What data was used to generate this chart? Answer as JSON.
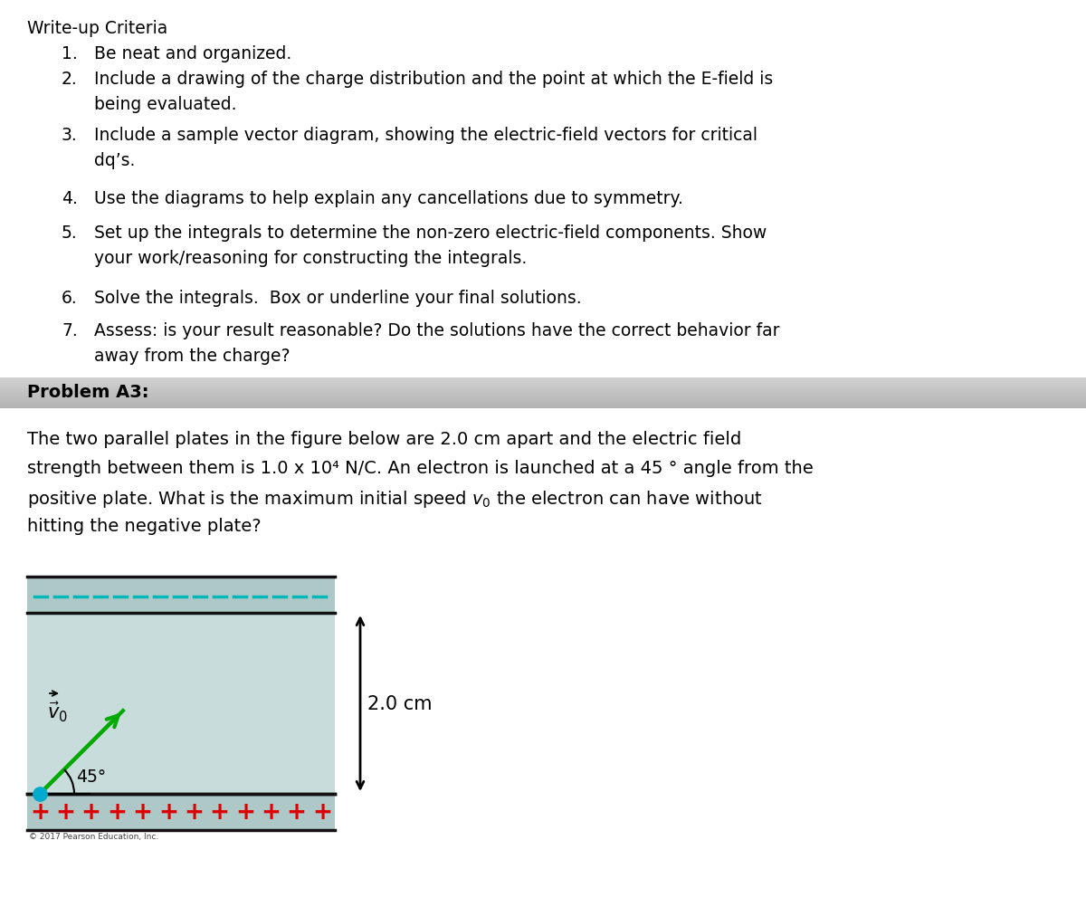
{
  "title_section": "Write-up Criteria",
  "item_numbers": [
    "1.",
    "2.",
    "3.",
    "4.",
    "5.",
    "6.",
    "7."
  ],
  "criteria_texts": [
    "Be neat and organized.",
    "Include a drawing of the charge distribution and the point at which the E-field is\nbeing evaluated.",
    "Include a sample vector diagram, showing the electric-field vectors for critical\ndq’s.",
    "Use the diagrams to help explain any cancellations due to symmetry.",
    "Set up the integrals to determine the non-zero electric-field components. Show\nyour work/reasoning for constructing the integrals.",
    "Solve the integrals.  Box or underline your final solutions.",
    "Assess: is your result reasonable? Do the solutions have the correct behavior far\naway from the charge?"
  ],
  "problem_label": "Problem A3:",
  "problem_lines": [
    "The two parallel plates in the figure below are 2.0 cm apart and the electric field",
    "strength between them is 1.0 x 10⁴ N/C. An electron is launched at a 45 ° angle from the",
    "positive plate. What is the maximum initial speed $v_0$ the electron can have without",
    "hitting the negative plate?"
  ],
  "bg_color": "#ffffff",
  "plate_top_fill": "#aec8c8",
  "plate_bot_fill": "#aec8c8",
  "gap_fill": "#c8dcdc",
  "plate_border": "#111111",
  "dash_color": "#00b8b8",
  "plus_color": "#dd0000",
  "arrow_color": "#00aa00",
  "dot_color": "#00aacc",
  "dim_color": "#000000",
  "copyright": "© 2017 Pearson Education, Inc."
}
